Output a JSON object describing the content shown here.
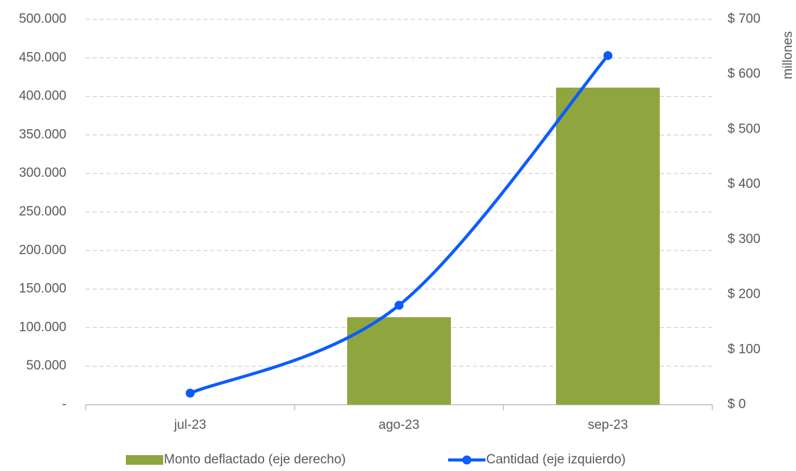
{
  "chart_data": {
    "type": "combo",
    "categories": [
      "jul-23",
      "ago-23",
      "sep-23"
    ],
    "series": [
      {
        "name": "Monto deflactado (eje derecho)",
        "type": "bar",
        "axis": "y2",
        "color": "#8fa63e",
        "values": [
          0,
          159,
          576
        ]
      },
      {
        "name": "Cantidad (eje izquierdo)",
        "type": "line",
        "color": "#0b5cff",
        "values": [
          15000,
          129000,
          453000
        ]
      }
    ],
    "ylim": [
      0,
      500000
    ],
    "yticks": [
      {
        "value": 0,
        "label": "-"
      },
      {
        "value": 50000,
        "label": "50.000"
      },
      {
        "value": 100000,
        "label": "100.000"
      },
      {
        "value": 150000,
        "label": "150.000"
      },
      {
        "value": 200000,
        "label": "200.000"
      },
      {
        "value": 250000,
        "label": "250.000"
      },
      {
        "value": 300000,
        "label": "300.000"
      },
      {
        "value": 350000,
        "label": "350.000"
      },
      {
        "value": 400000,
        "label": "400.000"
      },
      {
        "value": 450000,
        "label": "450.000"
      },
      {
        "value": 500000,
        "label": "500.000"
      }
    ],
    "y2lim": [
      0,
      700
    ],
    "y2ticks": [
      {
        "value": 0,
        "label": "$ 0"
      },
      {
        "value": 100,
        "label": "$ 100"
      },
      {
        "value": 200,
        "label": "$ 200"
      },
      {
        "value": 300,
        "label": "$ 300"
      },
      {
        "value": 400,
        "label": "$ 400"
      },
      {
        "value": 500,
        "label": "$ 500"
      },
      {
        "value": 600,
        "label": "$ 600"
      },
      {
        "value": 700,
        "label": "$ 700"
      }
    ],
    "y2label": "millones",
    "grid": true,
    "legend": "bottom"
  }
}
